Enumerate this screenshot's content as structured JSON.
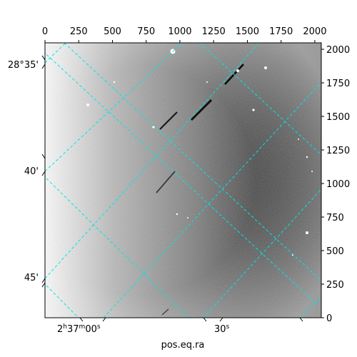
{
  "figure": {
    "xlabel": "pos.eq.ra",
    "top_ticks": [
      "0",
      "250",
      "500",
      "750",
      "1000",
      "1250",
      "1500",
      "1750",
      "2000"
    ],
    "right_ticks": [
      "2000",
      "1750",
      "1500",
      "1250",
      "1000",
      "750",
      "500",
      "250",
      "0"
    ],
    "dec_ticks": [
      "28°35'",
      "40'",
      "45'"
    ],
    "ra_ticks": {
      "first_main": "2",
      "first_h": "h",
      "first_mid": "37",
      "first_m": "m",
      "first_end": "00",
      "first_s": "s",
      "second_main": "30",
      "second_s": "s"
    },
    "pixel_range": [
      0,
      2048
    ],
    "colors": {
      "grid": "#00e5e5",
      "frame": "#000000"
    }
  }
}
